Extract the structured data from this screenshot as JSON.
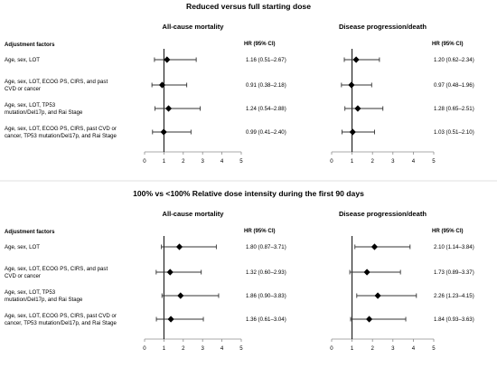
{
  "sections": [
    {
      "title": "Reduced versus full starting dose",
      "adjustment_header": "Adjustment factors",
      "rows": [
        [
          "Age, sex, LOT"
        ],
        [
          "Age, sex, LOT, ECOG PS, CIRS, and past",
          "CVD or cancer"
        ],
        [
          "Age, sex, LOT, TP53",
          "mutation/Del17p, and Rai Stage"
        ],
        [
          "Age, sex, LOT, ECOG PS, CIRS, past CVD or",
          "cancer, TP53 mutation/Del17p, and Rai Stage"
        ]
      ]
    },
    {
      "title": "100% vs <100% Relative dose intensity during the first 90 days",
      "adjustment_header": "Adjustment factors",
      "rows": [
        [
          "Age, sex, LOT"
        ],
        [
          "Age, sex, LOT, ECOG PS, CIRS, and past",
          "CVD or cancer"
        ],
        [
          "Age, sex, LOT, TP53",
          "mutation/Del17p, and Rai Stage"
        ],
        [
          "Age, sex, LOT, ECOG PS, CIRS, past CVD or",
          "cancer, TP53 mutation/Del17p, and Rai Stage"
        ]
      ]
    }
  ],
  "chart_data": [
    {
      "type": "forest",
      "section": 0,
      "title": "All-cause mortality",
      "value_header": "HR (95% CI)",
      "xlim": [
        0,
        5
      ],
      "reference_line": 1,
      "x_ticks": [
        "0",
        "1",
        "2",
        "3",
        "4",
        "5"
      ],
      "points": [
        {
          "hr": 1.16,
          "lo": 0.51,
          "hi": 2.67,
          "label": "1.16 (0.51–2.67)"
        },
        {
          "hr": 0.91,
          "lo": 0.38,
          "hi": 2.18,
          "label": "0.91 (0.38–2.18)"
        },
        {
          "hr": 1.24,
          "lo": 0.54,
          "hi": 2.88,
          "label": "1.24 (0.54–2.88)"
        },
        {
          "hr": 0.99,
          "lo": 0.41,
          "hi": 2.4,
          "label": "0.99 (0.41–2.40)"
        }
      ]
    },
    {
      "type": "forest",
      "section": 0,
      "title": "Disease progression/death",
      "value_header": "HR (95% CI)",
      "xlim": [
        0,
        5
      ],
      "reference_line": 1,
      "x_ticks": [
        "0",
        "1",
        "2",
        "3",
        "4",
        "5"
      ],
      "points": [
        {
          "hr": 1.2,
          "lo": 0.62,
          "hi": 2.34,
          "label": "1.20 (0.62–2.34)"
        },
        {
          "hr": 0.97,
          "lo": 0.48,
          "hi": 1.96,
          "label": "0.97 (0.48–1.96)"
        },
        {
          "hr": 1.28,
          "lo": 0.65,
          "hi": 2.51,
          "label": "1.28 (0.65–2.51)"
        },
        {
          "hr": 1.03,
          "lo": 0.51,
          "hi": 2.1,
          "label": "1.03 (0.51–2.10)"
        }
      ]
    },
    {
      "type": "forest",
      "section": 1,
      "title": "All-cause mortality",
      "value_header": "HR (95% CI)",
      "xlim": [
        0,
        5
      ],
      "reference_line": 1,
      "x_ticks": [
        "0",
        "1",
        "2",
        "3",
        "4",
        "5"
      ],
      "points": [
        {
          "hr": 1.8,
          "lo": 0.87,
          "hi": 3.71,
          "label": "1.80 (0.87–3.71)"
        },
        {
          "hr": 1.32,
          "lo": 0.6,
          "hi": 2.93,
          "label": "1.32 (0.60–2.93)"
        },
        {
          "hr": 1.86,
          "lo": 0.9,
          "hi": 3.83,
          "label": "1.86 (0.90–3.83)"
        },
        {
          "hr": 1.36,
          "lo": 0.61,
          "hi": 3.04,
          "label": "1.36 (0.61–3.04)"
        }
      ]
    },
    {
      "type": "forest",
      "section": 1,
      "title": "Disease progression/death",
      "value_header": "HR (95% CI)",
      "xlim": [
        0,
        5
      ],
      "reference_line": 1,
      "x_ticks": [
        "0",
        "1",
        "2",
        "3",
        "4",
        "5"
      ],
      "points": [
        {
          "hr": 2.1,
          "lo": 1.14,
          "hi": 3.84,
          "label": "2.10 (1.14–3.84)"
        },
        {
          "hr": 1.73,
          "lo": 0.89,
          "hi": 3.37,
          "label": "1.73 (0.89–3.37)"
        },
        {
          "hr": 2.26,
          "lo": 1.23,
          "hi": 4.15,
          "label": "2.26 (1.23–4.15)"
        },
        {
          "hr": 1.84,
          "lo": 0.93,
          "hi": 3.63,
          "label": "1.84 (0.93–3.63)"
        }
      ]
    }
  ],
  "colors": {
    "axis": "#8c8c8c",
    "reference_line": "#000000",
    "ci_line": "#333333",
    "marker": "#000000",
    "separator": "#d9d9d9"
  }
}
